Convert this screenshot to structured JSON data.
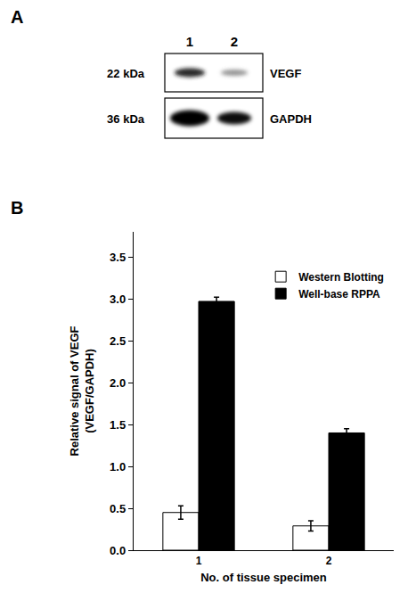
{
  "blot": {
    "label": "A",
    "lanes": [
      "1",
      "2"
    ],
    "rows": [
      {
        "size": "22 kDa",
        "protein": "VEGF"
      },
      {
        "size": "36 kDa",
        "protein": "GAPDH"
      }
    ]
  },
  "chart_data": {
    "type": "bar",
    "label": "B",
    "x_label": "No. of tissue specimen",
    "y_label": "Relative signal of VEGF\n(VEGF/GAPDH)",
    "categories": [
      "1",
      "2"
    ],
    "series": [
      {
        "name": "Western Blotting",
        "color": "#ffffff",
        "values": [
          0.45,
          0.29
        ],
        "errors": [
          0.08,
          0.06
        ]
      },
      {
        "name": "Well-base RPPA",
        "color": "#000000",
        "values": [
          2.97,
          1.4
        ],
        "errors": [
          0.05,
          0.05
        ]
      }
    ],
    "ylim": [
      0,
      3.8
    ],
    "yticks": [
      {
        "value": 0,
        "label": "0.0"
      },
      {
        "value": 0.5,
        "label": "0.5"
      },
      {
        "value": 1,
        "label": "1.0"
      },
      {
        "value": 1.5,
        "label": "1.5"
      },
      {
        "value": 2,
        "label": "2.0"
      },
      {
        "value": 2.5,
        "label": "2.5"
      },
      {
        "value": 3,
        "label": "3.0"
      },
      {
        "value": 3.5,
        "label": "3.5"
      }
    ],
    "grid": false,
    "legend": "upper right"
  }
}
